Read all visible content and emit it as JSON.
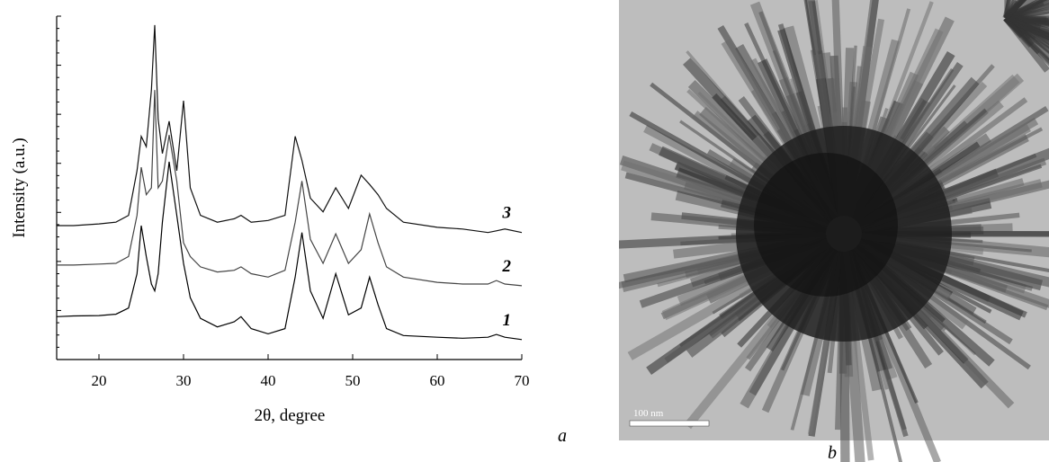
{
  "chart_data": {
    "type": "line",
    "x_label": "2θ, degree",
    "y_label": "Intensity (a.u.)",
    "panel_label": "a",
    "xlim": [
      15,
      70
    ],
    "xticks": [
      20,
      30,
      40,
      50,
      60,
      70
    ],
    "ylim": [
      0,
      100
    ],
    "x": [
      15,
      17,
      20,
      22,
      23.5,
      24.5,
      25,
      25.6,
      26.2,
      26.6,
      27,
      27.5,
      28.3,
      29.2,
      30,
      30.8,
      32,
      34,
      36,
      36.8,
      38,
      40,
      42,
      43.2,
      44,
      45,
      46.5,
      48,
      49.5,
      51,
      52,
      53,
      54,
      56,
      60,
      63,
      66,
      67,
      68,
      70
    ],
    "series": [
      {
        "name": "1",
        "color": "#000000",
        "values": [
          12.5,
          12.7,
          12.8,
          13.2,
          15,
          25,
          39,
          30,
          22,
          20,
          25,
          40,
          57.6,
          42,
          28,
          18,
          12,
          9.5,
          11,
          12.5,
          9,
          7.5,
          9,
          24,
          37,
          20,
          12,
          25,
          13,
          15,
          24,
          16,
          9,
          7,
          6.5,
          6.2,
          6.5,
          7.3,
          6.5,
          5.8
        ]
      },
      {
        "name": "2",
        "color": "#444444",
        "values": [
          27.5,
          27.5,
          27.8,
          28,
          30,
          42,
          56,
          48,
          50,
          78.5,
          50,
          52,
          65.4,
          52,
          34,
          30,
          27,
          25.5,
          26,
          27,
          25,
          24,
          26,
          40,
          52,
          35,
          28,
          36.6,
          28,
          32,
          42.4,
          34,
          27,
          24,
          22.5,
          22,
          22,
          23,
          22,
          21.5
        ]
      },
      {
        "name": "3",
        "color": "#111111",
        "values": [
          39,
          39,
          39.5,
          40,
          42,
          55,
          65,
          62,
          78.5,
          97.4,
          70,
          60,
          69.4,
          55,
          75.4,
          50,
          42,
          40,
          41,
          42,
          40,
          40.5,
          42,
          65,
          58,
          47,
          43,
          50,
          44,
          53.7,
          51,
          48,
          44,
          40,
          38.5,
          38,
          37,
          37.5,
          38,
          37
        ]
      }
    ]
  },
  "image": {
    "panel_label": "b",
    "scale_bar": "100 nm"
  }
}
